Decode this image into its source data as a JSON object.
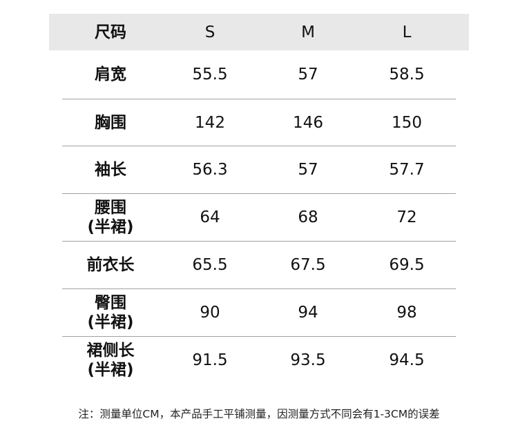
{
  "table": {
    "header": [
      "尺码",
      "S",
      "M",
      "L"
    ],
    "rows": [
      {
        "label": "肩宽",
        "values": [
          "55.5",
          "57",
          "58.5"
        ]
      },
      {
        "label": "胸围",
        "values": [
          "142",
          "146",
          "150"
        ]
      },
      {
        "label": "袖长",
        "values": [
          "56.3",
          "57",
          "57.7"
        ]
      },
      {
        "label": "腰围\n(半裙)",
        "values": [
          "64",
          "68",
          "72"
        ]
      },
      {
        "label": "前衣长",
        "values": [
          "65.5",
          "67.5",
          "69.5"
        ]
      },
      {
        "label": "臀围\n(半裙)",
        "values": [
          "90",
          "94",
          "98"
        ]
      },
      {
        "label": "裙侧长\n(半裙)",
        "values": [
          "91.5",
          "93.5",
          "94.5"
        ]
      }
    ]
  },
  "note": "注：测量单位CM，本产品手工平铺测量，因测量方式不同会有1-3CM的误差"
}
